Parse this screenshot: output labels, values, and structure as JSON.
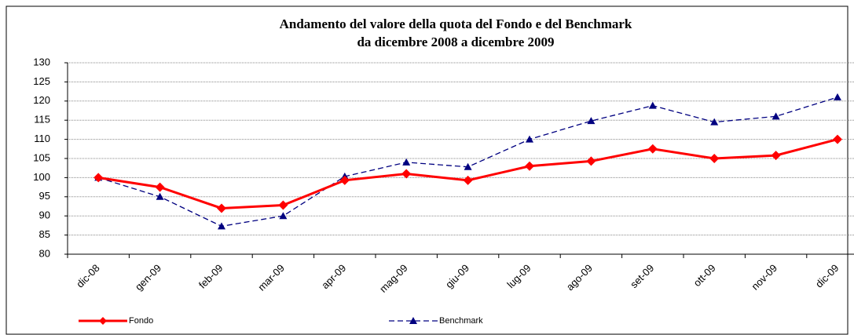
{
  "chart_data": {
    "type": "line",
    "title": "Andamento del valore della quota del Fondo e del Benchmark",
    "subtitle": "da dicembre 2008 a dicembre 2009",
    "categories": [
      "dic-08",
      "gen-09",
      "feb-09",
      "mar-09",
      "apr-09",
      "mag-09",
      "giu-09",
      "lug-09",
      "ago-09",
      "set-09",
      "ott-09",
      "nov-09",
      "dic-09"
    ],
    "series": [
      {
        "name": "Fondo",
        "color": "#ff0000",
        "values": [
          100,
          97.5,
          92,
          92.8,
          99.3,
          101,
          99.3,
          103,
          104.3,
          107.5,
          105,
          105.8,
          110
        ]
      },
      {
        "name": "Benchmark",
        "color": "#000080",
        "values": [
          100,
          95,
          87.3,
          90,
          100.3,
          104,
          102.8,
          110,
          114.8,
          118.8,
          114.5,
          116,
          121
        ]
      }
    ],
    "ylim": [
      80,
      130
    ],
    "yticks": [
      80,
      85,
      90,
      95,
      100,
      105,
      110,
      115,
      120,
      125,
      130
    ],
    "grid": true
  }
}
